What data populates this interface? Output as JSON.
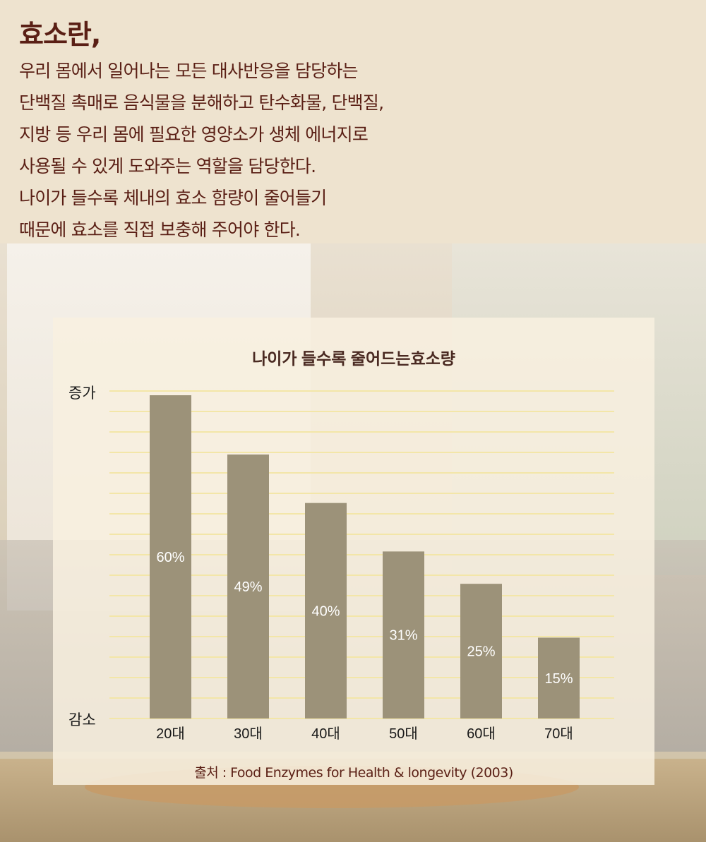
{
  "intro": {
    "title": "효소란,",
    "lines": [
      "우리 몸에서 일어나는 모든 대사반응을 담당하는",
      "단백질 촉매로 음식물을 분해하고 탄수화물, 단백질,",
      "지방 등 우리 몸에 필요한 영양소가 생체 에너지로",
      "사용될 수 있게 도와주는 역할을 담당한다.",
      "나이가 들수록 체내의 효소 함량이 줄어들기",
      "때문에 효소를 직접 보충해 주어야 한다."
    ]
  },
  "chart_data": {
    "type": "bar",
    "title": "나이가 들수록 줄어드는효소량",
    "categories": [
      "20대",
      "30대",
      "40대",
      "50대",
      "60대",
      "70대"
    ],
    "values": [
      60,
      49,
      40,
      31,
      25,
      15
    ],
    "value_labels": [
      "60%",
      "49%",
      "40%",
      "31%",
      "25%",
      "15%"
    ],
    "y_axis_top_label": "증가",
    "y_axis_bottom_label": "감소",
    "grid": true,
    "colors": {
      "bar": "#9c9279",
      "bar_text": "#ffffff",
      "gridline": "#f3e6a8",
      "title": "#4a2a22"
    }
  },
  "footer": {
    "source": "출처 : Food Enzymes for Health & longevity (2003)"
  }
}
